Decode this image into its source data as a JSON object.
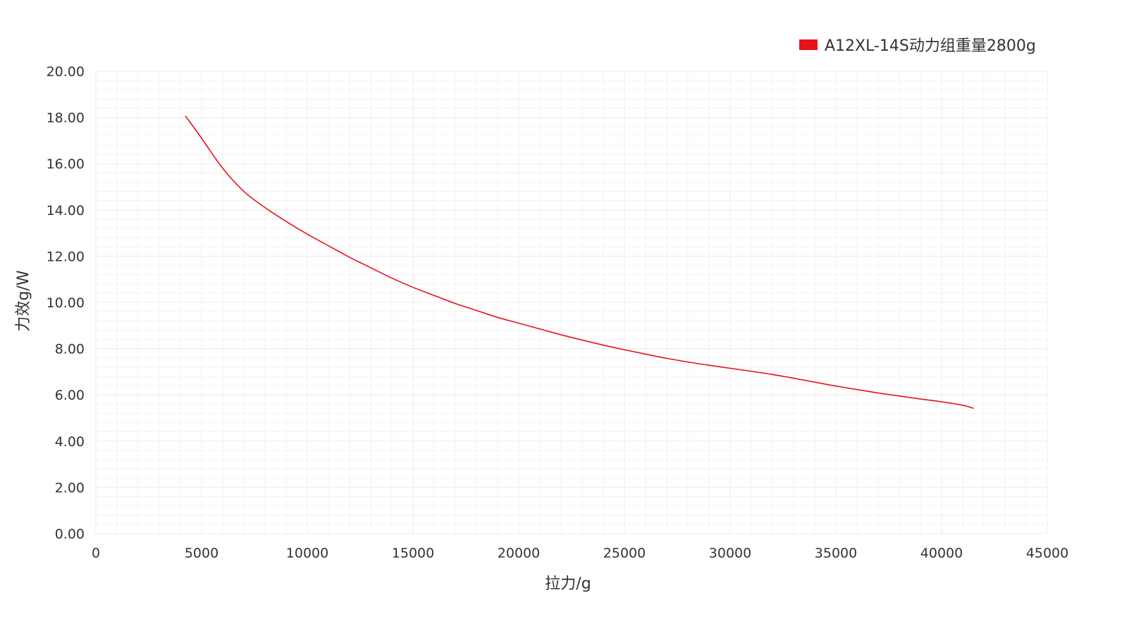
{
  "chart_data": {
    "type": "line",
    "title": "",
    "xlabel": "拉力/g",
    "ylabel": "力效g/W",
    "xlim": [
      0,
      45000
    ],
    "ylim": [
      0,
      20
    ],
    "grid": true,
    "legend_position": "top-right",
    "x_ticks": [
      "0",
      "5000",
      "10000",
      "15000",
      "20000",
      "25000",
      "30000",
      "35000",
      "40000",
      "45000"
    ],
    "y_ticks": [
      "0.00",
      "2.00",
      "4.00",
      "6.00",
      "8.00",
      "10.00",
      "12.00",
      "14.00",
      "16.00",
      "18.00",
      "20.00"
    ],
    "series": [
      {
        "name": "A12XL-14S动力组重量2800g",
        "color": "#e8121b",
        "x": [
          4250,
          5000,
          6000,
          7000,
          8000,
          9000,
          10000,
          11000,
          12000,
          13000,
          14000,
          15000,
          16000,
          17000,
          18000,
          19000,
          20000,
          21000,
          22000,
          23000,
          24000,
          25000,
          26000,
          27000,
          28000,
          29000,
          30000,
          31000,
          32000,
          33000,
          34000,
          35000,
          36000,
          37000,
          38000,
          39000,
          40000,
          41000,
          41500
        ],
        "y": [
          18.05,
          17.1,
          15.8,
          14.8,
          14.1,
          13.5,
          12.95,
          12.45,
          11.95,
          11.5,
          11.05,
          10.65,
          10.3,
          9.95,
          9.65,
          9.35,
          9.1,
          8.85,
          8.6,
          8.37,
          8.15,
          7.95,
          7.76,
          7.58,
          7.42,
          7.28,
          7.15,
          7.02,
          6.88,
          6.72,
          6.55,
          6.38,
          6.23,
          6.08,
          5.95,
          5.82,
          5.7,
          5.55,
          5.42
        ]
      }
    ]
  }
}
